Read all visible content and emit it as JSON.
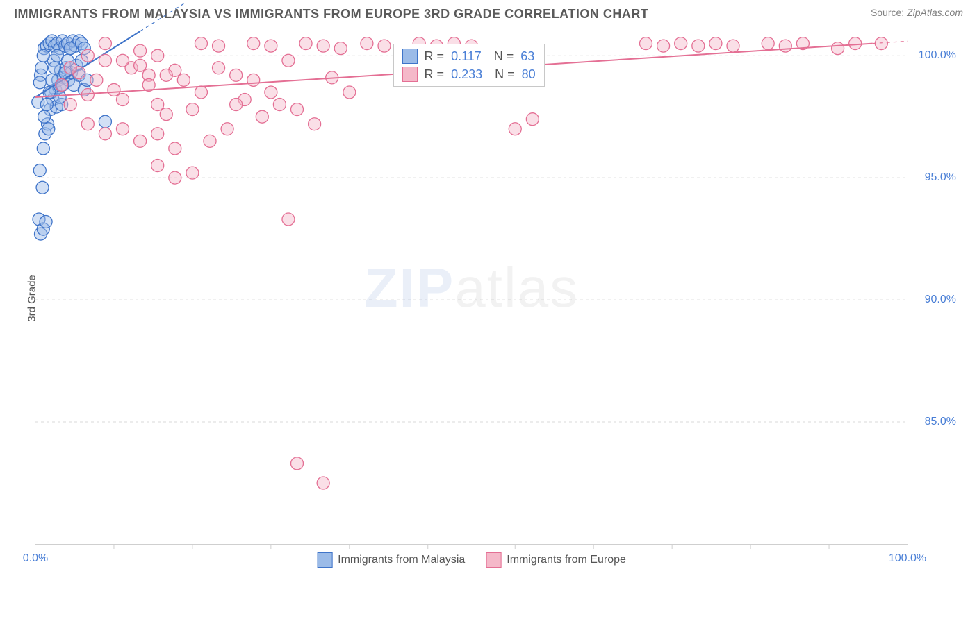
{
  "header": {
    "title": "IMMIGRANTS FROM MALAYSIA VS IMMIGRANTS FROM EUROPE 3RD GRADE CORRELATION CHART",
    "source_label": "Source:",
    "source_value": "ZipAtlas.com"
  },
  "chart": {
    "type": "scatter",
    "ylabel": "3rd Grade",
    "background_color": "#ffffff",
    "grid_color": "#d9d9d9",
    "axis_color": "#cfcfcf",
    "font_family": "Arial",
    "title_fontsize": 18,
    "label_fontsize": 15,
    "tick_fontsize": 16,
    "tick_color": "#4a7fd6",
    "xlim": [
      0,
      100
    ],
    "ylim": [
      80,
      101
    ],
    "y_ticks": [
      85,
      90,
      95,
      100
    ],
    "y_tick_labels": [
      "85.0%",
      "90.0%",
      "95.0%",
      "100.0%"
    ],
    "x_major_ticks": [
      0,
      100
    ],
    "x_tick_labels": [
      "0.0%",
      "100.0%"
    ],
    "x_minor_ticks": [
      9,
      18,
      27,
      36,
      45,
      55,
      64,
      73,
      82,
      91
    ],
    "marker_radius": 9,
    "marker_stroke_width": 1.3,
    "trend_line_width": 2,
    "series": [
      {
        "name": "Immigrants from Malaysia",
        "fill_color": "#9bbbe8",
        "fill_opacity": 0.45,
        "stroke_color": "#3f74c9",
        "R": "0.117",
        "N": "63",
        "trend": {
          "x1": 0,
          "y1": 98.3,
          "x2": 12,
          "y2": 101,
          "dash_ext_x": 17
        },
        "points": [
          [
            0.3,
            98.1
          ],
          [
            0.6,
            99.2
          ],
          [
            1.0,
            100.3
          ],
          [
            1.3,
            100.4
          ],
          [
            1.6,
            100.5
          ],
          [
            1.9,
            100.6
          ],
          [
            2.2,
            100.4
          ],
          [
            2.5,
            100.5
          ],
          [
            2.8,
            100.3
          ],
          [
            3.1,
            100.6
          ],
          [
            3.4,
            100.4
          ],
          [
            3.7,
            100.5
          ],
          [
            4.0,
            100.3
          ],
          [
            4.3,
            100.6
          ],
          [
            4.6,
            100.4
          ],
          [
            5.0,
            100.6
          ],
          [
            5.3,
            100.5
          ],
          [
            5.6,
            100.3
          ],
          [
            0.5,
            95.3
          ],
          [
            0.8,
            94.6
          ],
          [
            0.9,
            96.2
          ],
          [
            1.1,
            96.8
          ],
          [
            1.4,
            97.2
          ],
          [
            1.7,
            97.8
          ],
          [
            2.0,
            98.2
          ],
          [
            2.3,
            98.6
          ],
          [
            2.6,
            99.0
          ],
          [
            2.9,
            99.4
          ],
          [
            3.2,
            99.1
          ],
          [
            3.5,
            99.5
          ],
          [
            0.4,
            93.3
          ],
          [
            0.6,
            92.7
          ],
          [
            0.9,
            92.9
          ],
          [
            1.2,
            93.2
          ],
          [
            1.5,
            97.0
          ],
          [
            1.8,
            98.5
          ],
          [
            2.1,
            99.8
          ],
          [
            2.4,
            97.9
          ],
          [
            2.7,
            98.7
          ],
          [
            3.0,
            98.0
          ],
          [
            0.5,
            98.9
          ],
          [
            0.7,
            99.5
          ],
          [
            0.9,
            100.0
          ],
          [
            3.8,
            99.0
          ],
          [
            4.1,
            99.3
          ],
          [
            4.4,
            98.8
          ],
          [
            4.7,
            99.6
          ],
          [
            5.0,
            99.2
          ],
          [
            5.3,
            99.8
          ],
          [
            5.6,
            98.6
          ],
          [
            5.9,
            99.0
          ],
          [
            8.0,
            97.3
          ],
          [
            1.0,
            97.5
          ],
          [
            1.3,
            98.0
          ],
          [
            1.6,
            98.5
          ],
          [
            1.9,
            99.0
          ],
          [
            2.2,
            99.5
          ],
          [
            2.5,
            100.0
          ],
          [
            2.8,
            98.3
          ],
          [
            3.1,
            98.8
          ],
          [
            3.4,
            99.3
          ],
          [
            3.7,
            99.8
          ],
          [
            4.0,
            100.3
          ]
        ]
      },
      {
        "name": "Immigrants from Europe",
        "fill_color": "#f5b8c9",
        "fill_opacity": 0.45,
        "stroke_color": "#e46f94",
        "R": "0.233",
        "N": "80",
        "trend": {
          "x1": 0,
          "y1": 98.3,
          "x2": 96,
          "y2": 100.5,
          "dash_ext_x": 100
        },
        "points": [
          [
            3,
            98.8
          ],
          [
            5,
            99.3
          ],
          [
            7,
            99.0
          ],
          [
            9,
            98.6
          ],
          [
            11,
            99.5
          ],
          [
            13,
            99.2
          ],
          [
            15,
            97.6
          ],
          [
            4,
            98.0
          ],
          [
            6,
            97.2
          ],
          [
            8,
            96.8
          ],
          [
            10,
            97.0
          ],
          [
            12,
            96.5
          ],
          [
            14,
            96.8
          ],
          [
            16,
            96.2
          ],
          [
            6,
            98.4
          ],
          [
            8,
            99.8
          ],
          [
            10,
            98.2
          ],
          [
            12,
            99.6
          ],
          [
            14,
            98.0
          ],
          [
            16,
            99.4
          ],
          [
            18,
            97.8
          ],
          [
            19,
            100.5
          ],
          [
            21,
            100.4
          ],
          [
            23,
            99.2
          ],
          [
            25,
            100.5
          ],
          [
            27,
            100.4
          ],
          [
            29,
            99.8
          ],
          [
            31,
            100.5
          ],
          [
            33,
            100.4
          ],
          [
            35,
            100.3
          ],
          [
            34,
            99.1
          ],
          [
            36,
            98.5
          ],
          [
            30,
            97.8
          ],
          [
            32,
            97.2
          ],
          [
            28,
            98.0
          ],
          [
            38,
            100.5
          ],
          [
            40,
            100.4
          ],
          [
            42,
            99.7
          ],
          [
            44,
            100.5
          ],
          [
            46,
            100.4
          ],
          [
            48,
            100.5
          ],
          [
            50,
            100.4
          ],
          [
            26,
            97.5
          ],
          [
            24,
            98.2
          ],
          [
            22,
            97.0
          ],
          [
            20,
            96.5
          ],
          [
            18,
            95.2
          ],
          [
            16,
            95.0
          ],
          [
            14,
            95.5
          ],
          [
            55,
            97.0
          ],
          [
            57,
            97.4
          ],
          [
            70,
            100.5
          ],
          [
            72,
            100.4
          ],
          [
            74,
            100.5
          ],
          [
            76,
            100.4
          ],
          [
            78,
            100.5
          ],
          [
            80,
            100.4
          ],
          [
            84,
            100.5
          ],
          [
            86,
            100.4
          ],
          [
            88,
            100.5
          ],
          [
            92,
            100.3
          ],
          [
            94,
            100.5
          ],
          [
            97,
            100.5
          ],
          [
            29,
            93.3
          ],
          [
            30,
            83.3
          ],
          [
            33,
            82.5
          ],
          [
            4,
            99.5
          ],
          [
            6,
            100.0
          ],
          [
            8,
            100.5
          ],
          [
            10,
            99.8
          ],
          [
            12,
            100.2
          ],
          [
            14,
            100.0
          ],
          [
            17,
            99.0
          ],
          [
            19,
            98.5
          ],
          [
            21,
            99.5
          ],
          [
            23,
            98.0
          ],
          [
            25,
            99.0
          ],
          [
            27,
            98.5
          ],
          [
            13,
            98.8
          ],
          [
            15,
            99.2
          ]
        ]
      }
    ],
    "legend_box": {
      "left_pct": 41,
      "top_pct": 2.5
    },
    "bottom_legend": [
      {
        "label": "Immigrants from Malaysia",
        "color": "#9bbbe8",
        "stroke": "#3f74c9"
      },
      {
        "label": "Immigrants from Europe",
        "color": "#f5b8c9",
        "stroke": "#e46f94"
      }
    ],
    "watermark": {
      "zip": "ZIP",
      "atlas": "atlas"
    }
  }
}
